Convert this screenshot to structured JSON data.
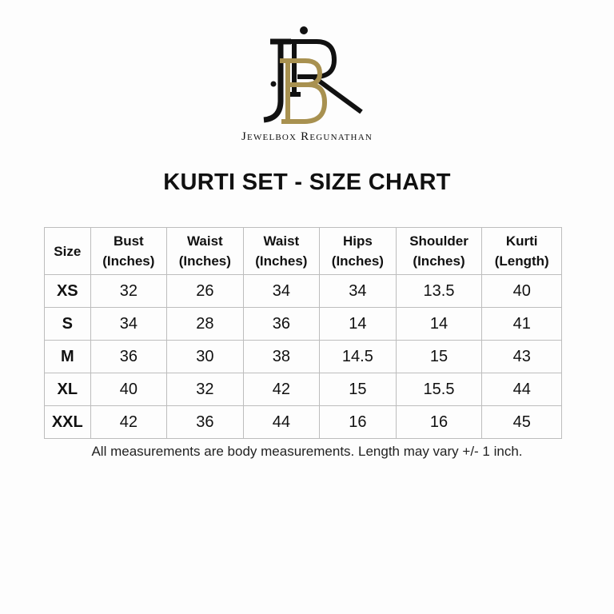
{
  "brand": {
    "name": "Jewelbox Regunathan",
    "monogram": "JBR",
    "colors": {
      "black": "#111111",
      "gold": "#a89150"
    }
  },
  "title": "KURTI SET - SIZE CHART",
  "table": {
    "headers": [
      {
        "line1": "Size",
        "line2": ""
      },
      {
        "line1": "Bust",
        "line2": "(Inches)"
      },
      {
        "line1": "Waist",
        "line2": "(Inches)"
      },
      {
        "line1": "Waist",
        "line2": "(Inches)"
      },
      {
        "line1": "Hips",
        "line2": "(Inches)"
      },
      {
        "line1": "Shoulder",
        "line2": "(Inches)"
      },
      {
        "line1": "Kurti",
        "line2": "(Length)"
      }
    ],
    "rows": [
      [
        "XS",
        "32",
        "26",
        "34",
        "34",
        "13.5",
        "40"
      ],
      [
        "S",
        "34",
        "28",
        "36",
        "14",
        "14",
        "41"
      ],
      [
        "M",
        "36",
        "30",
        "38",
        "14.5",
        "15",
        "43"
      ],
      [
        "XL",
        "40",
        "32",
        "42",
        "15",
        "15.5",
        "44"
      ],
      [
        "XXL",
        "42",
        "36",
        "44",
        "16",
        "16",
        "45"
      ]
    ]
  },
  "note": "All measurements are body measurements. Length may vary +/- 1 inch."
}
